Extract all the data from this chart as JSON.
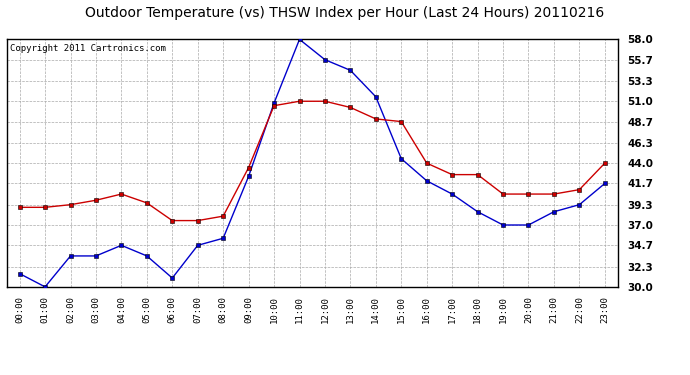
{
  "title": "Outdoor Temperature (vs) THSW Index per Hour (Last 24 Hours) 20110216",
  "copyright": "Copyright 2011 Cartronics.com",
  "x_labels": [
    "00:00",
    "01:00",
    "02:00",
    "03:00",
    "04:00",
    "05:00",
    "06:00",
    "07:00",
    "08:00",
    "09:00",
    "10:00",
    "11:00",
    "12:00",
    "13:00",
    "14:00",
    "15:00",
    "16:00",
    "17:00",
    "18:00",
    "19:00",
    "20:00",
    "21:00",
    "22:00",
    "23:00"
  ],
  "blue_data": [
    31.5,
    30.0,
    33.5,
    33.5,
    34.7,
    33.5,
    31.0,
    34.7,
    35.5,
    42.5,
    50.8,
    58.0,
    55.7,
    54.5,
    51.5,
    44.5,
    42.0,
    40.5,
    38.5,
    37.0,
    37.0,
    38.5,
    39.3,
    41.7
  ],
  "red_data": [
    39.0,
    39.0,
    39.3,
    39.8,
    40.5,
    39.5,
    37.5,
    37.5,
    38.0,
    43.5,
    50.5,
    51.0,
    51.0,
    50.3,
    49.0,
    48.7,
    44.0,
    42.7,
    42.7,
    40.5,
    40.5,
    40.5,
    41.0,
    44.0
  ],
  "ylim": [
    30.0,
    58.0
  ],
  "yticks": [
    30.0,
    32.3,
    34.7,
    37.0,
    39.3,
    41.7,
    44.0,
    46.3,
    48.7,
    51.0,
    53.3,
    55.7,
    58.0
  ],
  "blue_color": "#0000cc",
  "red_color": "#cc0000",
  "bg_color": "#ffffff",
  "plot_bg": "#ffffff",
  "grid_color": "#aaaaaa",
  "title_fontsize": 10,
  "copyright_fontsize": 6.5,
  "tick_fontsize": 7.5,
  "xtick_fontsize": 6.5
}
